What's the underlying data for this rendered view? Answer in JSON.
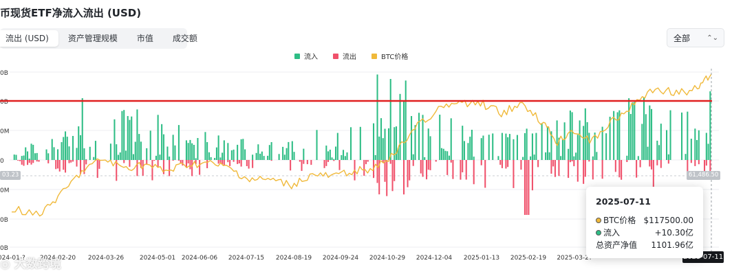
{
  "title": "币现货ETF净流入流出 (USD)",
  "tabs": [
    "流出 (USD)",
    "资产管理规模",
    "市值",
    "成交额"
  ],
  "range_select": {
    "value": "全部"
  },
  "legend": [
    {
      "name": "流入",
      "color": "#2ebd85"
    },
    {
      "name": "流出",
      "color": "#f0516b"
    },
    {
      "name": "BTC价格",
      "color": "#f0b93a"
    }
  ],
  "chart_data": {
    "type": "bar",
    "y_ticks": [
      "0B",
      "0B",
      "0M",
      "0",
      "0M",
      "0B",
      "0B"
    ],
    "x_ticks": [
      "2024-01-?",
      "2024-02-20",
      "2024-03-26",
      "2024-05-01",
      "2024-06-06",
      "2024-07-15",
      "2024-08-19",
      "2024-09-24",
      "2024-10-29",
      "2024-12-04",
      "2025-01-13",
      "2025-02-19",
      "2025-03-2?",
      "2025-07-11"
    ],
    "price_badge_left": "03.23",
    "price_badge_right": "61,486.50",
    "highlight_date": "2025-07-11",
    "reference_line_color": "#e01f1f",
    "series": [
      {
        "name": "流入",
        "color": "#2ebd85"
      },
      {
        "name": "流出",
        "color": "#f0516b"
      },
      {
        "name": "BTC价格",
        "color": "#f0b93a"
      }
    ]
  },
  "tooltip": {
    "date": "2025-07-11",
    "rows": [
      {
        "label": "BTC价格",
        "value": "$117500.00",
        "color": "#f0b93a"
      },
      {
        "label": "流入",
        "value": "+10.30亿",
        "color": "#2ebd85"
      },
      {
        "label": "总资产净值",
        "value": "1101.96亿"
      }
    ]
  },
  "watermark": "大数跨境"
}
